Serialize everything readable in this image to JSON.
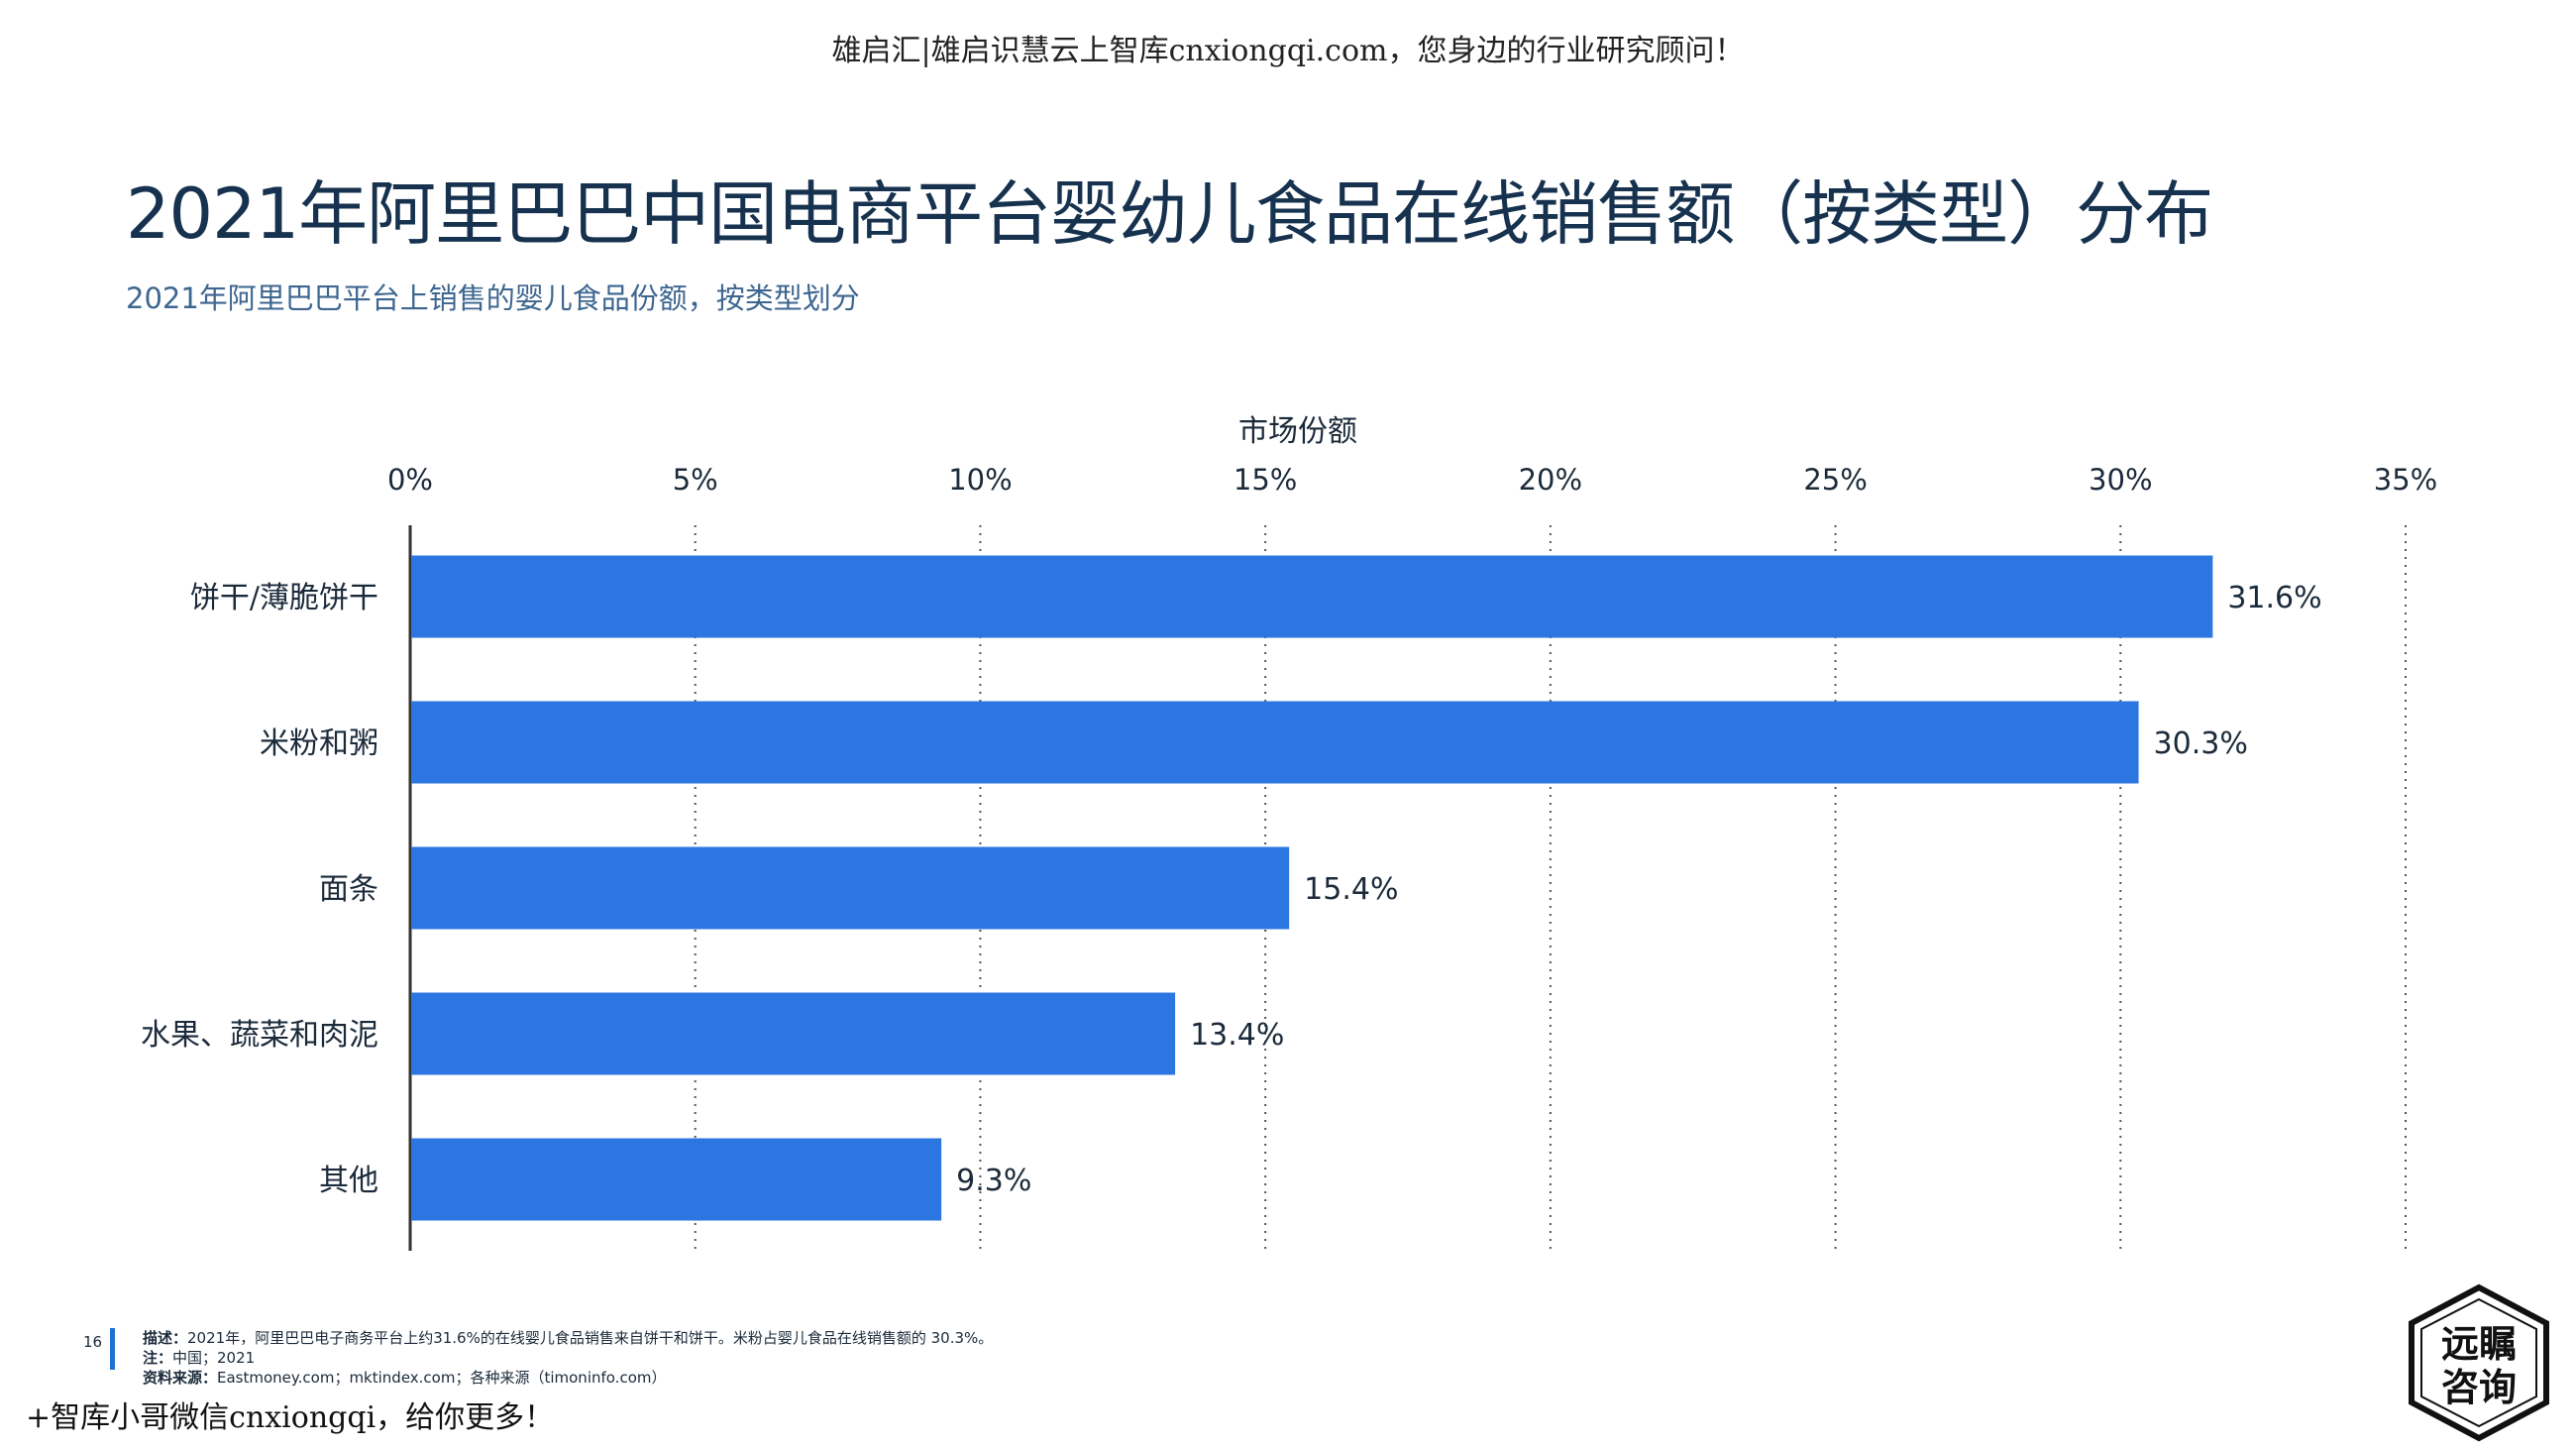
{
  "header": {
    "watermark": "雄启汇|雄启识慧云上智库cnxiongqi.com，您身边的行业研究顾问！",
    "title": "2021年阿里巴巴中国电商平台婴幼儿食品在线销售额（按类型）分布",
    "subtitle": "2021年阿里巴巴平台上销售的婴儿食品份额，按类型划分"
  },
  "chart_data": {
    "type": "bar",
    "orientation": "horizontal",
    "xlabel": "市场份额",
    "xlim": [
      0,
      35
    ],
    "xticks": [
      "0%",
      "5%",
      "10%",
      "15%",
      "20%",
      "25%",
      "30%",
      "35%"
    ],
    "grid": "vertical dotted",
    "categories": [
      "饼干/薄脆饼干",
      "米粉和粥",
      "面条",
      "水果、蔬菜和肉泥",
      "其他"
    ],
    "values": [
      31.6,
      30.3,
      15.4,
      13.4,
      9.3
    ],
    "value_labels": [
      "31.6%",
      "30.3%",
      "15.4%",
      "13.4%",
      "9.3%"
    ],
    "bar_color": "#2b76e0"
  },
  "footer": {
    "page_number": "16",
    "desc_label": "描述：",
    "desc_text": "2021年，阿里巴巴电子商务平台上约31.6%的在线婴儿食品销售来自饼干和饼干。米粉占婴儿食品在线销售额的 30.3%。",
    "note_label": "注：",
    "note_text": "中国；2021",
    "source_label": "资料来源：",
    "source_text": "Eastmoney.com；mktindex.com；各种来源（timoninfo.com）"
  },
  "promo": "+智库小哥微信cnxiongqi，给你更多！",
  "logo": {
    "line1": "远瞩",
    "line2": "咨询"
  }
}
